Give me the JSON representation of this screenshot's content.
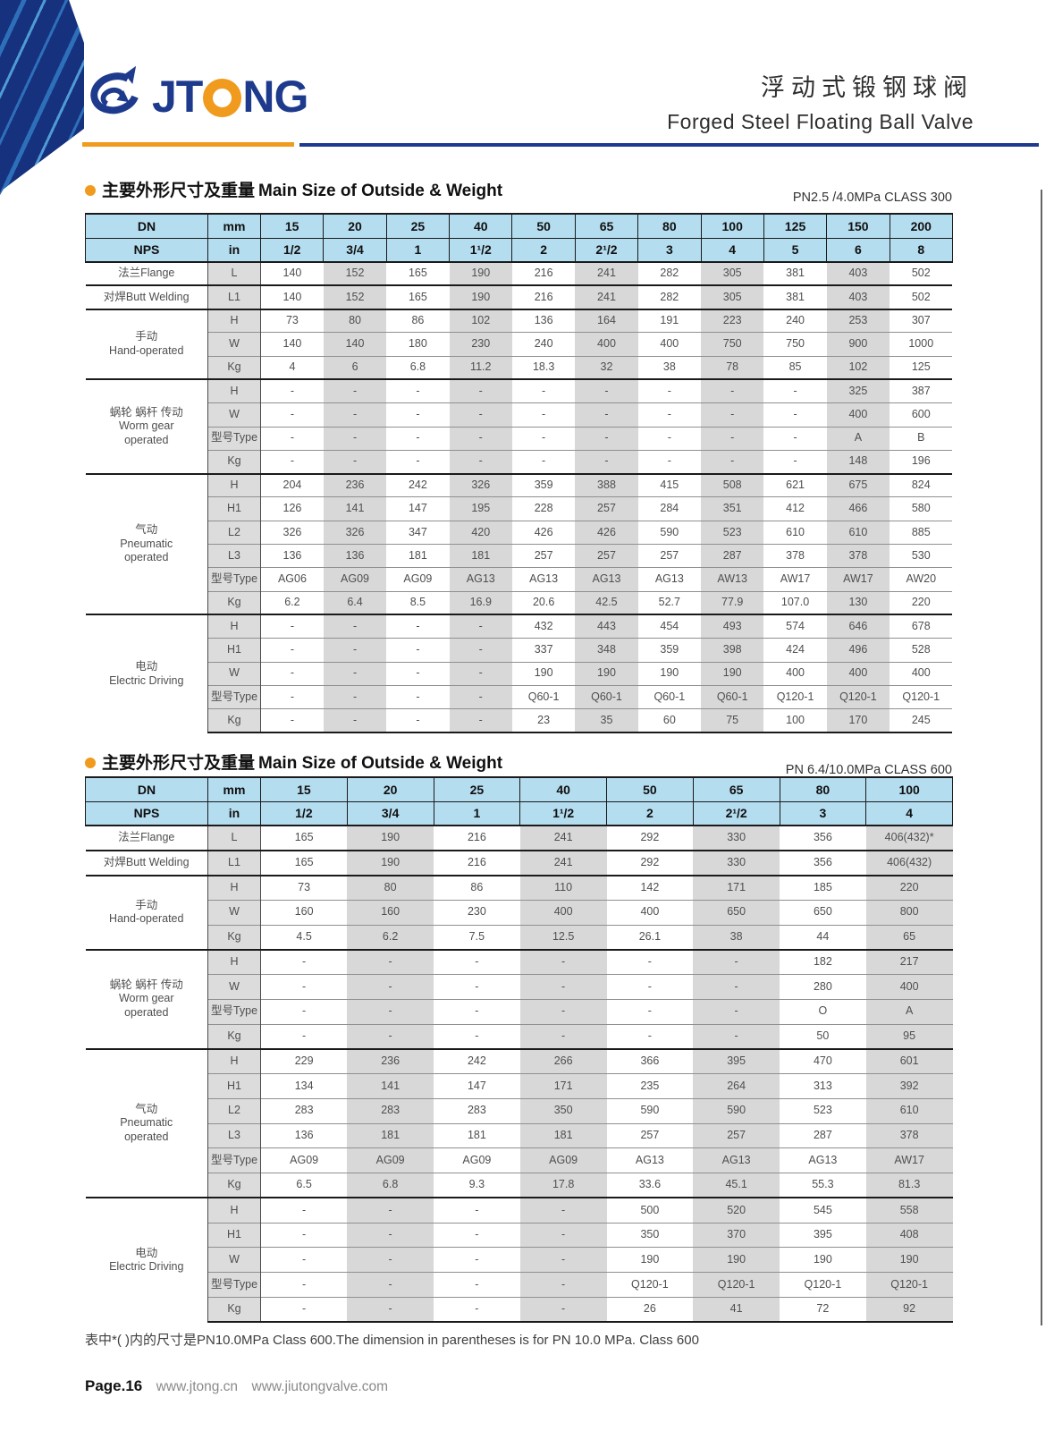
{
  "colors": {
    "navy": "#1d3a8d",
    "orange": "#f09a1e",
    "table_header_blue": "#b4ddf0",
    "stripe_gray": "#d8d8d8"
  },
  "header": {
    "logo": {
      "icon": "swirl-logo-icon",
      "text_before_o": "JT",
      "text_after_o": "NG"
    },
    "title_zh": "浮动式锻钢球阀",
    "title_en": "Forged Steel Floating Ball Valve"
  },
  "sections": [
    {
      "title_zh": "主要外形尺寸及重量",
      "title_en": "Main Size of Outside & Weight",
      "pressure_class": "PN2.5 /4.0MPa CLASS 300",
      "table": {
        "header": {
          "row1_label": "DN",
          "row1_unit": "mm",
          "row2_label": "NPS",
          "row2_unit": "in",
          "sizes_mm": [
            "15",
            "20",
            "25",
            "40",
            "50",
            "65",
            "80",
            "100",
            "125",
            "150",
            "200"
          ],
          "sizes_in": [
            "1/2",
            "3/4",
            "1",
            "1¹/2",
            "2",
            "2¹/2",
            "3",
            "4",
            "5",
            "6",
            "8"
          ]
        },
        "groups": [
          {
            "label_lines": [
              "法兰Flange"
            ],
            "rows": [
              {
                "param": "L",
                "values": [
                  "140",
                  "152",
                  "165",
                  "190",
                  "216",
                  "241",
                  "282",
                  "305",
                  "381",
                  "403",
                  "502"
                ]
              }
            ]
          },
          {
            "label_lines": [
              "对焊Butt Welding"
            ],
            "rows": [
              {
                "param": "L1",
                "values": [
                  "140",
                  "152",
                  "165",
                  "190",
                  "216",
                  "241",
                  "282",
                  "305",
                  "381",
                  "403",
                  "502"
                ]
              }
            ]
          },
          {
            "label_lines": [
              "手动",
              "Hand-operated"
            ],
            "rows": [
              {
                "param": "H",
                "values": [
                  "73",
                  "80",
                  "86",
                  "102",
                  "136",
                  "164",
                  "191",
                  "223",
                  "240",
                  "253",
                  "307"
                ]
              },
              {
                "param": "W",
                "values": [
                  "140",
                  "140",
                  "180",
                  "230",
                  "240",
                  "400",
                  "400",
                  "750",
                  "750",
                  "900",
                  "1000"
                ]
              },
              {
                "param": "Kg",
                "values": [
                  "4",
                  "6",
                  "6.8",
                  "11.2",
                  "18.3",
                  "32",
                  "38",
                  "78",
                  "85",
                  "102",
                  "125"
                ]
              }
            ]
          },
          {
            "label_lines": [
              "蜗轮 蜗杆 传动",
              "Worm gear",
              "operated"
            ],
            "rows": [
              {
                "param": "H",
                "values": [
                  "-",
                  "-",
                  "-",
                  "-",
                  "-",
                  "-",
                  "-",
                  "-",
                  "-",
                  "325",
                  "387"
                ]
              },
              {
                "param": "W",
                "values": [
                  "-",
                  "-",
                  "-",
                  "-",
                  "-",
                  "-",
                  "-",
                  "-",
                  "-",
                  "400",
                  "600"
                ]
              },
              {
                "param": "型号Type",
                "values": [
                  "-",
                  "-",
                  "-",
                  "-",
                  "-",
                  "-",
                  "-",
                  "-",
                  "-",
                  "A",
                  "B"
                ]
              },
              {
                "param": "Kg",
                "values": [
                  "-",
                  "-",
                  "-",
                  "-",
                  "-",
                  "-",
                  "-",
                  "-",
                  "-",
                  "148",
                  "196"
                ]
              }
            ]
          },
          {
            "label_lines": [
              "气动",
              "Pneumatic",
              "operated"
            ],
            "rows": [
              {
                "param": "H",
                "values": [
                  "204",
                  "236",
                  "242",
                  "326",
                  "359",
                  "388",
                  "415",
                  "508",
                  "621",
                  "675",
                  "824"
                ]
              },
              {
                "param": "H1",
                "values": [
                  "126",
                  "141",
                  "147",
                  "195",
                  "228",
                  "257",
                  "284",
                  "351",
                  "412",
                  "466",
                  "580"
                ]
              },
              {
                "param": "L2",
                "values": [
                  "326",
                  "326",
                  "347",
                  "420",
                  "426",
                  "426",
                  "590",
                  "523",
                  "610",
                  "610",
                  "885"
                ]
              },
              {
                "param": "L3",
                "values": [
                  "136",
                  "136",
                  "181",
                  "181",
                  "257",
                  "257",
                  "257",
                  "287",
                  "378",
                  "378",
                  "530"
                ]
              },
              {
                "param": "型号Type",
                "values": [
                  "AG06",
                  "AG09",
                  "AG09",
                  "AG13",
                  "AG13",
                  "AG13",
                  "AG13",
                  "AW13",
                  "AW17",
                  "AW17",
                  "AW20"
                ]
              },
              {
                "param": "Kg",
                "values": [
                  "6.2",
                  "6.4",
                  "8.5",
                  "16.9",
                  "20.6",
                  "42.5",
                  "52.7",
                  "77.9",
                  "107.0",
                  "130",
                  "220"
                ]
              }
            ]
          },
          {
            "label_lines": [
              "电动",
              "Electric Driving"
            ],
            "rows": [
              {
                "param": "H",
                "values": [
                  "-",
                  "-",
                  "-",
                  "-",
                  "432",
                  "443",
                  "454",
                  "493",
                  "574",
                  "646",
                  "678"
                ]
              },
              {
                "param": "H1",
                "values": [
                  "-",
                  "-",
                  "-",
                  "-",
                  "337",
                  "348",
                  "359",
                  "398",
                  "424",
                  "496",
                  "528"
                ]
              },
              {
                "param": "W",
                "values": [
                  "-",
                  "-",
                  "-",
                  "-",
                  "190",
                  "190",
                  "190",
                  "190",
                  "400",
                  "400",
                  "400"
                ]
              },
              {
                "param": "型号Type",
                "values": [
                  "-",
                  "-",
                  "-",
                  "-",
                  "Q60-1",
                  "Q60-1",
                  "Q60-1",
                  "Q60-1",
                  "Q120-1",
                  "Q120-1",
                  "Q120-1"
                ]
              },
              {
                "param": "Kg",
                "values": [
                  "-",
                  "-",
                  "-",
                  "-",
                  "23",
                  "35",
                  "60",
                  "75",
                  "100",
                  "170",
                  "245"
                ]
              }
            ]
          }
        ]
      }
    },
    {
      "title_zh": "主要外形尺寸及重量",
      "title_en": "Main Size of Outside & Weight",
      "pressure_class": "PN 6.4/10.0MPa CLASS 600",
      "table": {
        "header": {
          "row1_label": "DN",
          "row1_unit": "mm",
          "row2_label": "NPS",
          "row2_unit": "in",
          "sizes_mm": [
            "15",
            "20",
            "25",
            "40",
            "50",
            "65",
            "80",
            "100"
          ],
          "sizes_in": [
            "1/2",
            "3/4",
            "1",
            "1¹/2",
            "2",
            "2¹/2",
            "3",
            "4"
          ]
        },
        "groups": [
          {
            "label_lines": [
              "法兰Flange"
            ],
            "rows": [
              {
                "param": "L",
                "values": [
                  "165",
                  "190",
                  "216",
                  "241",
                  "292",
                  "330",
                  "356",
                  "406(432)*"
                ]
              }
            ]
          },
          {
            "label_lines": [
              "对焊Butt Welding"
            ],
            "rows": [
              {
                "param": "L1",
                "values": [
                  "165",
                  "190",
                  "216",
                  "241",
                  "292",
                  "330",
                  "356",
                  "406(432)"
                ]
              }
            ]
          },
          {
            "label_lines": [
              "手动",
              "Hand-operated"
            ],
            "rows": [
              {
                "param": "H",
                "values": [
                  "73",
                  "80",
                  "86",
                  "110",
                  "142",
                  "171",
                  "185",
                  "220"
                ]
              },
              {
                "param": "W",
                "values": [
                  "160",
                  "160",
                  "230",
                  "400",
                  "400",
                  "650",
                  "650",
                  "800"
                ]
              },
              {
                "param": "Kg",
                "values": [
                  "4.5",
                  "6.2",
                  "7.5",
                  "12.5",
                  "26.1",
                  "38",
                  "44",
                  "65"
                ]
              }
            ]
          },
          {
            "label_lines": [
              "蜗轮 蜗杆 传动",
              "Worm gear",
              "operated"
            ],
            "rows": [
              {
                "param": "H",
                "values": [
                  "-",
                  "-",
                  "-",
                  "-",
                  "-",
                  "-",
                  "182",
                  "217"
                ]
              },
              {
                "param": "W",
                "values": [
                  "-",
                  "-",
                  "-",
                  "-",
                  "-",
                  "-",
                  "280",
                  "400"
                ]
              },
              {
                "param": "型号Type",
                "values": [
                  "-",
                  "-",
                  "-",
                  "-",
                  "-",
                  "-",
                  "O",
                  "A"
                ]
              },
              {
                "param": "Kg",
                "values": [
                  "-",
                  "-",
                  "-",
                  "-",
                  "-",
                  "-",
                  "50",
                  "95"
                ]
              }
            ]
          },
          {
            "label_lines": [
              "气动",
              "Pneumatic",
              "operated"
            ],
            "rows": [
              {
                "param": "H",
                "values": [
                  "229",
                  "236",
                  "242",
                  "266",
                  "366",
                  "395",
                  "470",
                  "601"
                ]
              },
              {
                "param": "H1",
                "values": [
                  "134",
                  "141",
                  "147",
                  "171",
                  "235",
                  "264",
                  "313",
                  "392"
                ]
              },
              {
                "param": "L2",
                "values": [
                  "283",
                  "283",
                  "283",
                  "350",
                  "590",
                  "590",
                  "523",
                  "610"
                ]
              },
              {
                "param": "L3",
                "values": [
                  "136",
                  "181",
                  "181",
                  "181",
                  "257",
                  "257",
                  "287",
                  "378"
                ]
              },
              {
                "param": "型号Type",
                "values": [
                  "AG09",
                  "AG09",
                  "AG09",
                  "AG09",
                  "AG13",
                  "AG13",
                  "AG13",
                  "AW17"
                ]
              },
              {
                "param": "Kg",
                "values": [
                  "6.5",
                  "6.8",
                  "9.3",
                  "17.8",
                  "33.6",
                  "45.1",
                  "55.3",
                  "81.3"
                ]
              }
            ]
          },
          {
            "label_lines": [
              "电动",
              "Electric Driving"
            ],
            "rows": [
              {
                "param": "H",
                "values": [
                  "-",
                  "-",
                  "-",
                  "-",
                  "500",
                  "520",
                  "545",
                  "558"
                ]
              },
              {
                "param": "H1",
                "values": [
                  "-",
                  "-",
                  "-",
                  "-",
                  "350",
                  "370",
                  "395",
                  "408"
                ]
              },
              {
                "param": "W",
                "values": [
                  "-",
                  "-",
                  "-",
                  "-",
                  "190",
                  "190",
                  "190",
                  "190"
                ]
              },
              {
                "param": "型号Type",
                "values": [
                  "-",
                  "-",
                  "-",
                  "-",
                  "Q120-1",
                  "Q120-1",
                  "Q120-1",
                  "Q120-1"
                ]
              },
              {
                "param": "Kg",
                "values": [
                  "-",
                  "-",
                  "-",
                  "-",
                  "26",
                  "41",
                  "72",
                  "92"
                ]
              }
            ]
          }
        ]
      }
    }
  ],
  "footnote": "表中*(  )内的尺寸是PN10.0MPa Class 600.The dimension in parentheses is for PN 10.0 MPa. Class 600",
  "footer": {
    "page": "Page.16",
    "url1": "www.jtong.cn",
    "url2": "www.jiutongvalve.com"
  }
}
